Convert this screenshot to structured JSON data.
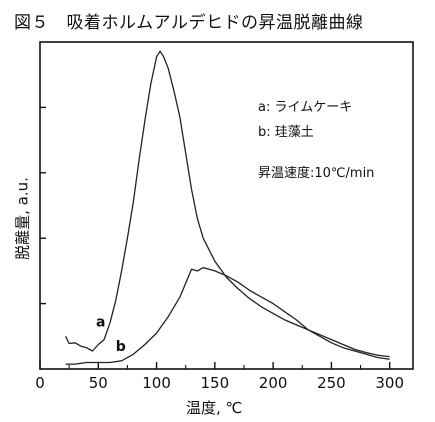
{
  "figure": {
    "title": "図５　吸着ホルムアルデヒドの昇温脱離曲線"
  },
  "legend": {
    "a": "a: ライムケーキ",
    "b": "b: 珪藻土",
    "rate": "昇温速度:10℃/min"
  },
  "chart_data": {
    "type": "line",
    "xlabel": "温度, ℃",
    "ylabel": "脱離量, a.u.",
    "xlim": [
      0,
      320
    ],
    "ylim": [
      0,
      10
    ],
    "xticks": [
      "0",
      "50",
      "100",
      "150",
      "200",
      "250",
      "300"
    ],
    "grid": false,
    "series": [
      {
        "name": "a",
        "x": [
          22,
          25,
          30,
          35,
          40,
          45,
          50,
          55,
          60,
          65,
          70,
          75,
          80,
          85,
          90,
          95,
          100,
          103,
          106,
          110,
          115,
          120,
          125,
          130,
          135,
          140,
          150,
          160,
          170,
          180,
          190,
          200,
          210,
          220,
          230,
          240,
          250,
          260,
          270,
          280,
          290,
          300
        ],
        "y": [
          1.0,
          0.78,
          0.8,
          0.7,
          0.65,
          0.55,
          0.75,
          0.9,
          1.4,
          2.1,
          3.0,
          4.0,
          5.1,
          6.4,
          7.6,
          8.7,
          9.55,
          9.72,
          9.55,
          9.2,
          8.5,
          7.7,
          6.6,
          5.5,
          4.6,
          4.0,
          3.3,
          2.8,
          2.45,
          2.15,
          1.9,
          1.7,
          1.5,
          1.35,
          1.2,
          1.05,
          0.9,
          0.75,
          0.6,
          0.5,
          0.42,
          0.38
        ]
      },
      {
        "name": "b",
        "x": [
          22,
          30,
          40,
          50,
          60,
          70,
          80,
          90,
          100,
          110,
          120,
          130,
          135,
          140,
          150,
          160,
          170,
          180,
          190,
          200,
          210,
          220,
          230,
          240,
          250,
          260,
          270,
          280,
          290,
          300
        ],
        "y": [
          0.15,
          0.15,
          0.2,
          0.2,
          0.2,
          0.25,
          0.45,
          0.75,
          1.1,
          1.6,
          2.2,
          3.05,
          3.0,
          3.1,
          3.0,
          2.85,
          2.65,
          2.4,
          2.2,
          2.0,
          1.75,
          1.5,
          1.2,
          1.0,
          0.8,
          0.65,
          0.55,
          0.45,
          0.35,
          0.3
        ]
      }
    ],
    "curve_labels": [
      "a",
      "b"
    ]
  },
  "colors": {
    "line": "#222222",
    "axis": "#111111"
  }
}
